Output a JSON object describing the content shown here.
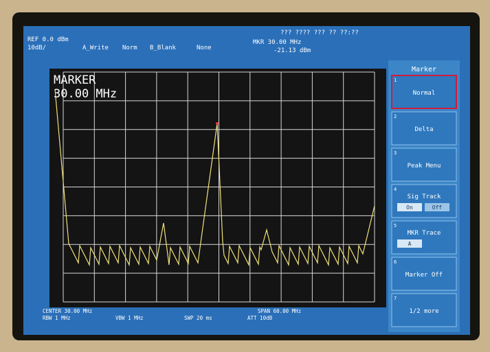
{
  "header": {
    "ref": "REF 0.0 dBm",
    "scale": "10dB/",
    "trace_a": "A_Write",
    "trace_a_mode": "Norm",
    "trace_b": "B_Blank",
    "trace_b_mode": "None",
    "datetime": "??? ???? ??? ?? ??:??",
    "marker_freq": "MKR 30.00 MHz",
    "marker_level": "-21.13 dBm"
  },
  "plot": {
    "marker_label": "MARKER",
    "marker_value": "30.00 MHz"
  },
  "softkeys": {
    "title": "Marker",
    "keys": [
      {
        "number": "1",
        "label": "Normal"
      },
      {
        "number": "2",
        "label": "Delta"
      },
      {
        "number": "3",
        "label": "Peak Menu"
      },
      {
        "number": "4",
        "label": "Sig Track",
        "options": [
          "On",
          "Off"
        ]
      },
      {
        "number": "5",
        "label": "MKR Trace",
        "options": [
          "A"
        ]
      },
      {
        "number": "6",
        "label": "Marker Off"
      },
      {
        "number": "7",
        "label": "1/2 more"
      }
    ]
  },
  "footer": {
    "center": "CENTER 30.00 MHz",
    "rbw": "RBW 1 MHz",
    "vbw": "VBW 1 MHz",
    "sweep": "SWP 20 ms",
    "span": "SPAN 60.00 MHz",
    "att": "ATT 10dB"
  }
}
